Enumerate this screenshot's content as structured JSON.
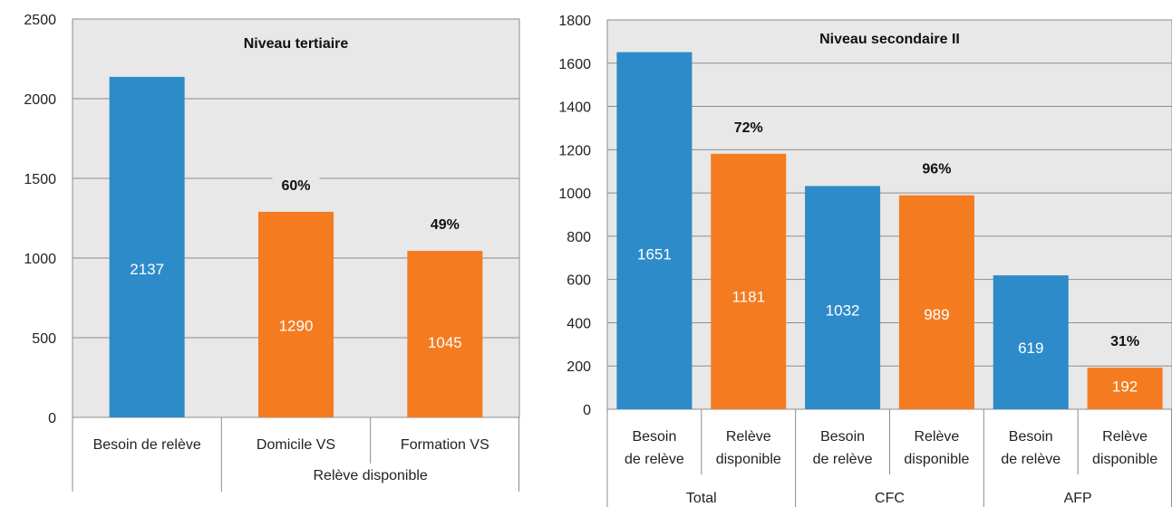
{
  "colors": {
    "blue": "#2E8BC9",
    "orange": "#F47B20",
    "plot_bg": "#E8E8E8",
    "grid": "#8C8C8C",
    "axis": "#8C8C8C"
  },
  "chart_data": [
    {
      "type": "bar",
      "title": "Niveau tertiaire",
      "ylim": [
        0,
        2500
      ],
      "yticks": [
        "0",
        "500",
        "1000",
        "1500",
        "2000",
        "2500"
      ],
      "grid": true,
      "categories": [
        "Besoin de relève",
        "Domicile VS",
        "Formation VS"
      ],
      "groups": [
        {
          "label": "",
          "categories": [
            "Besoin de relève"
          ]
        },
        {
          "label": "Relève disponible",
          "categories": [
            "Domicile VS",
            "Formation VS"
          ]
        }
      ],
      "values": [
        2137,
        1290,
        1045
      ],
      "value_labels": [
        "2137",
        "1290",
        "1045"
      ],
      "bar_colors": [
        "blue",
        "orange",
        "orange"
      ],
      "percent_labels": [
        "",
        "60%",
        "49%"
      ]
    },
    {
      "type": "bar",
      "title": "Niveau secondaire II",
      "ylim": [
        0,
        1800
      ],
      "yticks": [
        "0",
        "200",
        "400",
        "600",
        "800",
        "1000",
        "1200",
        "1400",
        "1600",
        "1800"
      ],
      "grid": true,
      "categories": [
        [
          "Besoin",
          "de relève"
        ],
        [
          "Relève",
          "disponible"
        ],
        [
          "Besoin",
          "de relève"
        ],
        [
          "Relève",
          "disponible"
        ],
        [
          "Besoin",
          "de relève"
        ],
        [
          "Relève",
          "disponible"
        ]
      ],
      "groups": [
        {
          "label": "Total"
        },
        {
          "label": "CFC"
        },
        {
          "label": "AFP"
        }
      ],
      "values": [
        1651,
        1181,
        1032,
        989,
        619,
        192
      ],
      "value_labels": [
        "1651",
        "1181",
        "1032",
        "989",
        "619",
        "192"
      ],
      "bar_colors": [
        "blue",
        "orange",
        "blue",
        "orange",
        "blue",
        "orange"
      ],
      "percent_labels": [
        "",
        "72%",
        "",
        "96%",
        "",
        "31%"
      ]
    }
  ]
}
